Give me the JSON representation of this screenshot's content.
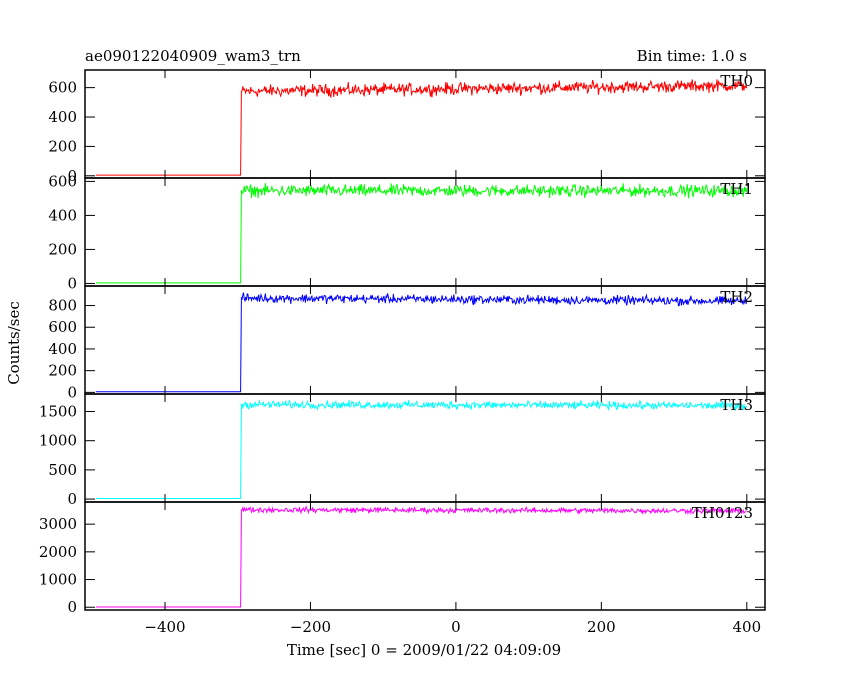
{
  "chart_data": {
    "type": "line",
    "title": "ae090122040909_wam3_trn",
    "subtitle": "Bin time: 1.0 s",
    "xlabel": "Time [sec] 0 = 2009/01/22 04:09:09",
    "ylabel": "Counts/sec",
    "xlim": [
      -510,
      425
    ],
    "x_ticks": [
      -400,
      -200,
      0,
      200,
      400
    ],
    "x_tick_labels": [
      "−400",
      "−200",
      "0",
      "200",
      "400"
    ],
    "onset_x": -295,
    "x_start": -495,
    "x_end": 400,
    "panels": [
      {
        "name": "TH0",
        "color": "#ff0000",
        "ylim": [
          -15,
          720
        ],
        "yticks": [
          0,
          200,
          400,
          600
        ],
        "baseline": 5,
        "level_start": 575,
        "level_end": 615,
        "noise": 35
      },
      {
        "name": "TH1",
        "color": "#00ff00",
        "ylim": [
          -15,
          620
        ],
        "yticks": [
          0,
          200,
          400,
          600
        ],
        "baseline": 3,
        "level_start": 545,
        "level_end": 545,
        "noise": 30
      },
      {
        "name": "TH2",
        "color": "#0000ff",
        "ylim": [
          -15,
          980
        ],
        "yticks": [
          0,
          200,
          400,
          600,
          800
        ],
        "baseline": 5,
        "level_start": 870,
        "level_end": 840,
        "noise": 35
      },
      {
        "name": "TH3",
        "color": "#00ffff",
        "ylim": [
          -50,
          1800
        ],
        "yticks": [
          0,
          500,
          1000,
          1500
        ],
        "baseline": 10,
        "level_start": 1620,
        "level_end": 1600,
        "noise": 55
      },
      {
        "name": "TH0123",
        "color": "#ff00ff",
        "ylim": [
          -100,
          3800
        ],
        "yticks": [
          0,
          1000,
          2000,
          3000
        ],
        "baseline": 10,
        "level_start": 3520,
        "level_end": 3480,
        "noise": 80
      }
    ]
  }
}
